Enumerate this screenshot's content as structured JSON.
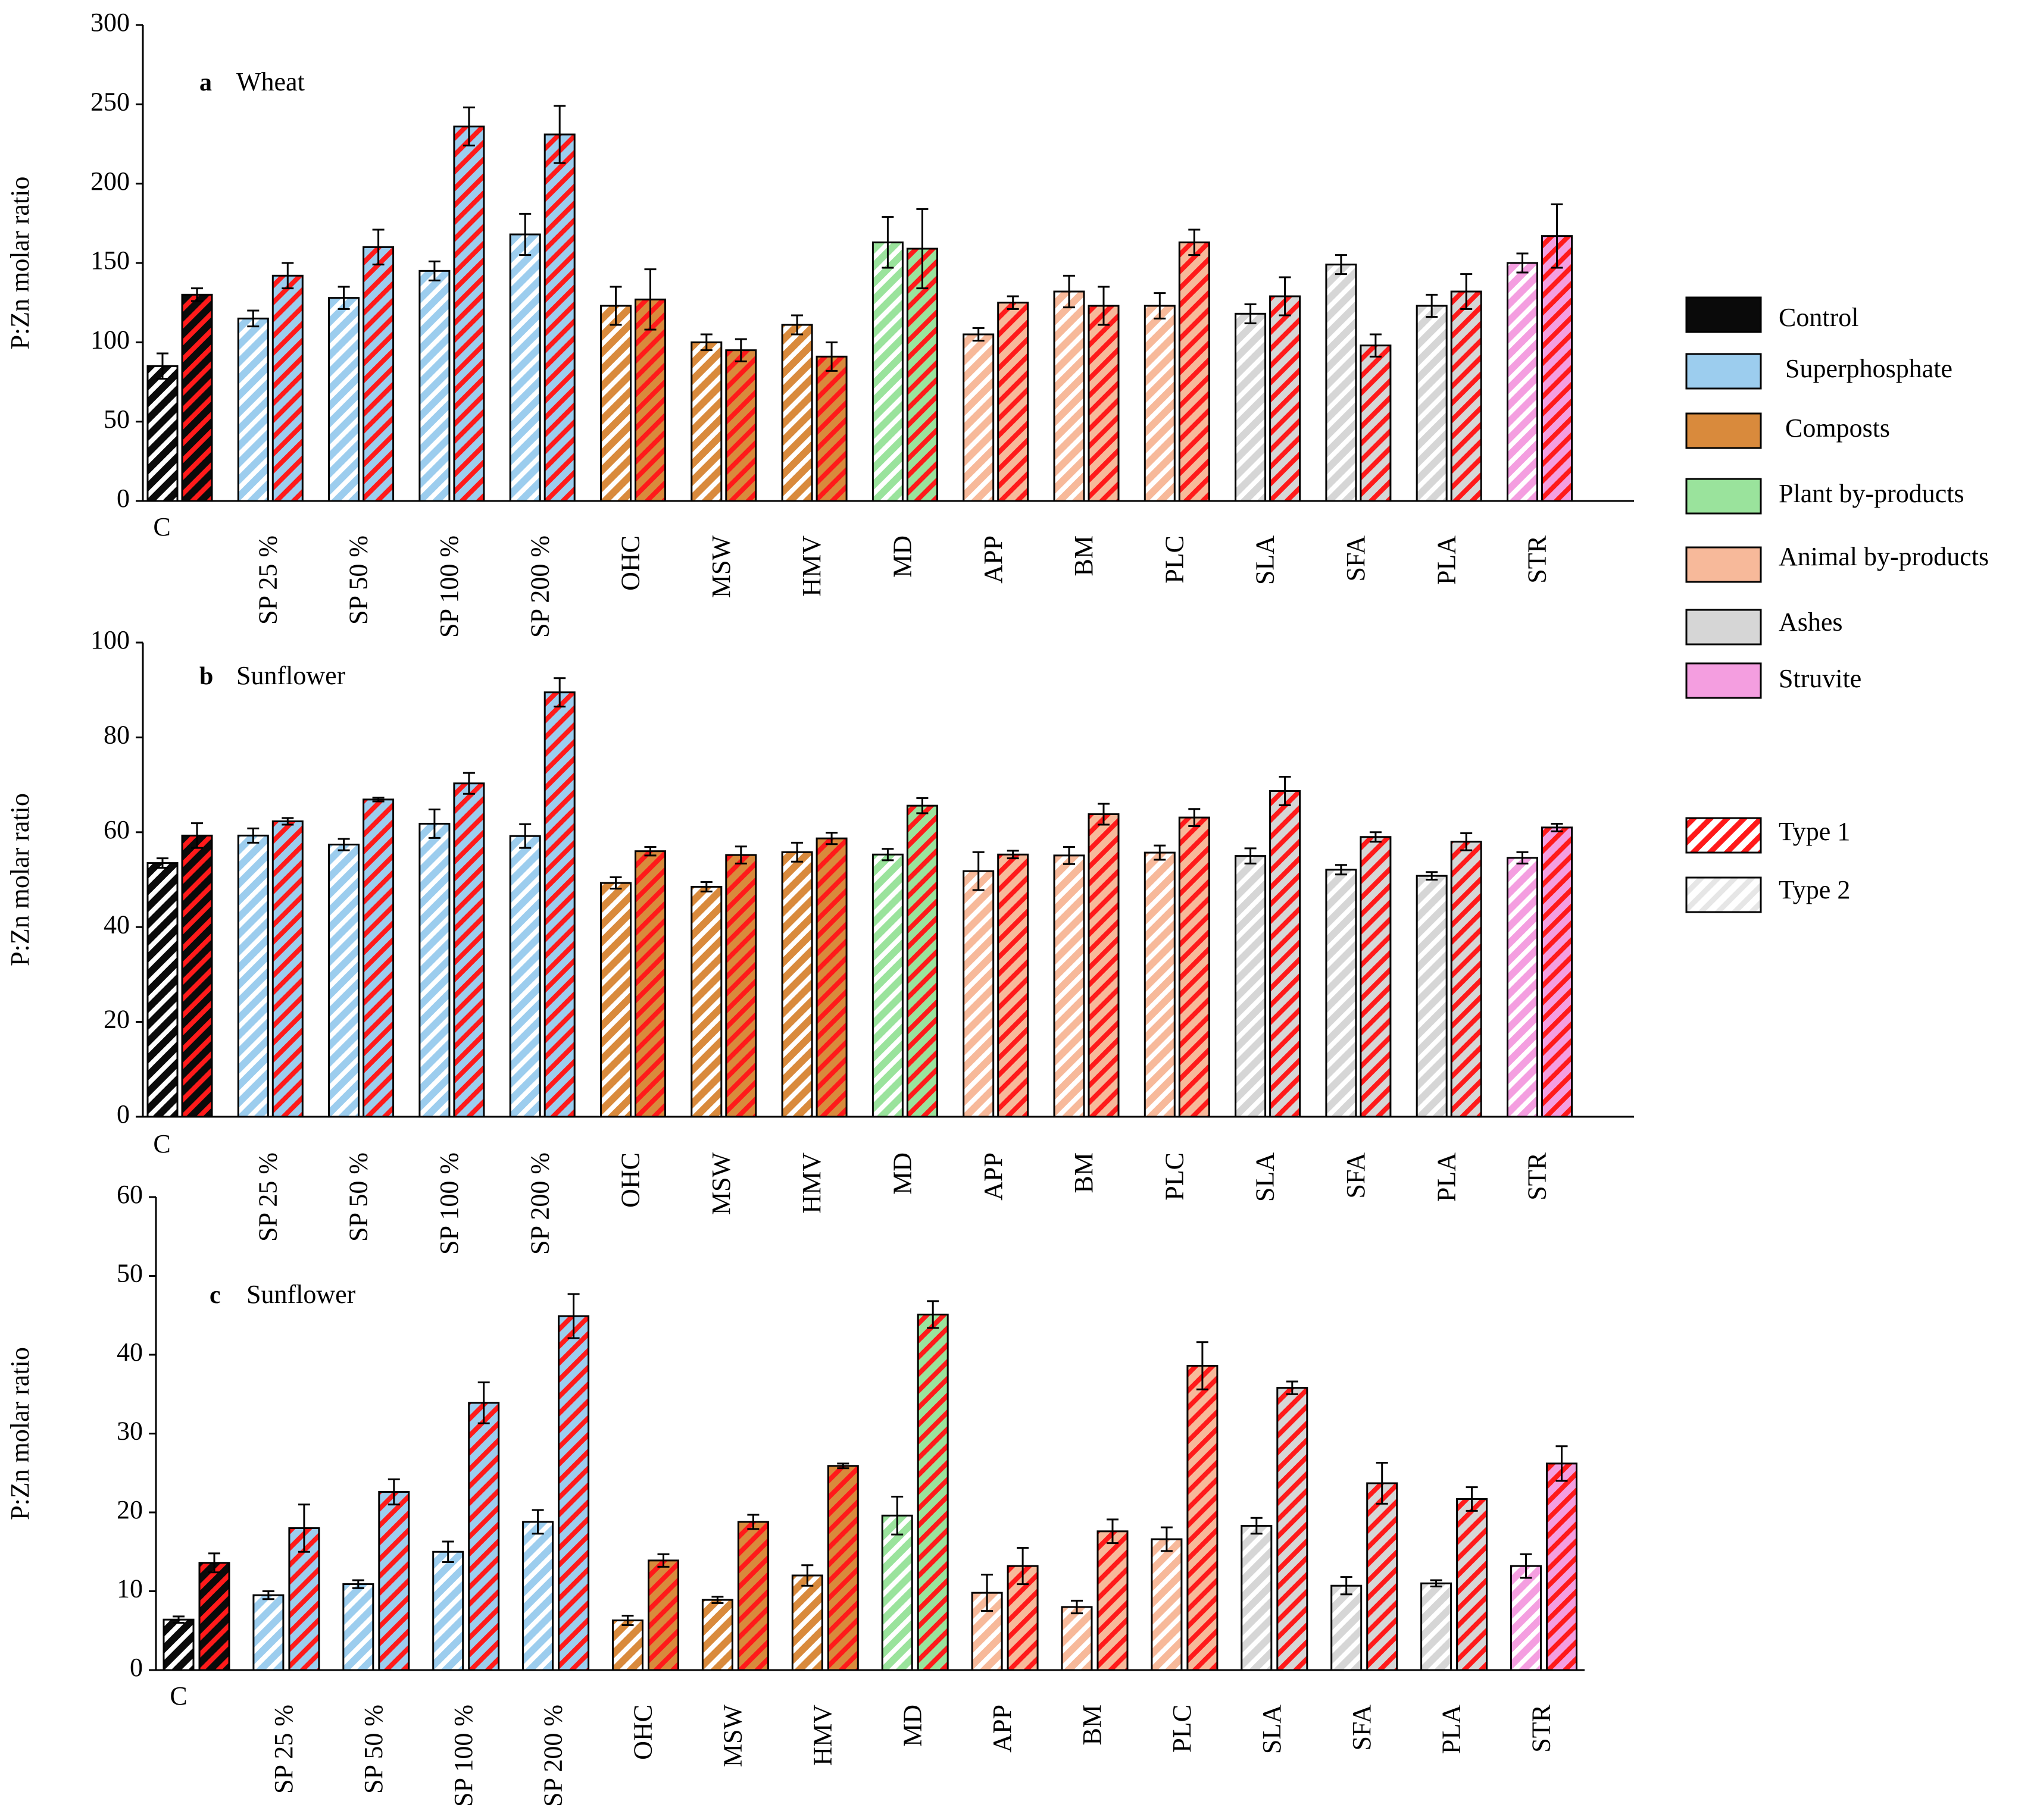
{
  "figure": {
    "treatments": [
      "C",
      "SP 25 %",
      "SP 50 %",
      "SP 100 %",
      "SP 200 %",
      "OHC",
      "MSW",
      "HMV",
      "MD",
      "APP",
      "BM",
      "PLC",
      "SLA",
      "SFA",
      "PLA",
      "STR"
    ],
    "treatment_groups": [
      "control",
      "superphosphate",
      "superphosphate",
      "superphosphate",
      "superphosphate",
      "composts",
      "composts",
      "composts",
      "plant",
      "animal",
      "animal",
      "animal",
      "ashes",
      "ashes",
      "ashes",
      "struvite"
    ]
  },
  "legend": {
    "groups": [
      {
        "key": "control",
        "label": "Control"
      },
      {
        "key": "superphosphate",
        "label": " Superphosphate"
      },
      {
        "key": "composts",
        "label": " Composts"
      },
      {
        "key": "plant",
        "label": "Plant by-products"
      },
      {
        "key": "animal",
        "label": "Animal by-products"
      },
      {
        "key": "ashes",
        "label": "Ashes"
      },
      {
        "key": "struvite",
        "label": "Struvite"
      }
    ],
    "types": [
      {
        "key": "type1",
        "label": "Type 1"
      },
      {
        "key": "type2",
        "label": "Type 2"
      }
    ]
  },
  "colors": {
    "control": "#0a0a0a",
    "superphosphate": "#9ccdee",
    "composts": "#d98a3c",
    "plant": "#9ae39c",
    "animal": "#f7b99a",
    "ashes": "#d6d6d6",
    "struvite": "#f49ee0",
    "type1_stripe": "#ff1a1a",
    "type2_stripe": "#ffffff",
    "border": "#000000"
  },
  "chart_data": [
    {
      "type": "bar",
      "panel_letter": "a",
      "title": "Wheat",
      "ylabel": "P:Zn molar ratio",
      "ylim": [
        0,
        300
      ],
      "yticks": [
        0,
        50,
        100,
        150,
        200,
        250,
        300
      ],
      "categories": [
        "C",
        "SP 25 %",
        "SP 50 %",
        "SP 100 %",
        "SP 200 %",
        "OHC",
        "MSW",
        "HMV",
        "MD",
        "APP",
        "BM",
        "PLC",
        "SLA",
        "SFA",
        "PLA",
        "STR"
      ],
      "series": [
        {
          "name": "Type 2",
          "values": [
            85,
            115,
            128,
            145,
            168,
            123,
            100,
            111,
            163,
            105,
            132,
            123,
            118,
            149,
            123,
            150
          ],
          "errors": [
            8,
            5,
            7,
            6,
            13,
            12,
            5,
            6,
            16,
            4,
            10,
            8,
            6,
            6,
            7,
            6
          ]
        },
        {
          "name": "Type 1",
          "values": [
            130,
            142,
            160,
            236,
            231,
            127,
            95,
            91,
            159,
            125,
            123,
            163,
            129,
            98,
            132,
            167
          ],
          "errors": [
            4,
            8,
            11,
            12,
            18,
            19,
            7,
            9,
            25,
            4,
            12,
            8,
            12,
            7,
            11,
            20
          ]
        }
      ]
    },
    {
      "type": "bar",
      "panel_letter": "b",
      "title": "Sunflower",
      "ylabel": "P:Zn molar ratio",
      "ylim": [
        0,
        100
      ],
      "yticks": [
        0,
        20,
        40,
        60,
        80,
        100
      ],
      "categories": [
        "C",
        "SP 25 %",
        "SP 50 %",
        "SP 100 %",
        "SP 200 %",
        "OHC",
        "MSW",
        "HMV",
        "MD",
        "APP",
        "BM",
        "PLC",
        "SLA",
        "SFA",
        "PLA",
        "STR"
      ],
      "series": [
        {
          "name": "Type 2",
          "values": [
            53.5,
            59.3,
            57.4,
            61.8,
            59.2,
            49.3,
            48.5,
            55.8,
            55.3,
            51.8,
            55.1,
            55.7,
            55.0,
            52.1,
            50.8,
            54.6
          ],
          "errors": [
            1.0,
            1.5,
            1.2,
            3.0,
            2.5,
            1.2,
            1.0,
            2.0,
            1.2,
            4.0,
            1.8,
            1.5,
            1.6,
            1.0,
            0.8,
            1.2
          ]
        },
        {
          "name": "Type 1",
          "values": [
            59.3,
            62.3,
            66.9,
            70.3,
            89.5,
            56.0,
            55.2,
            58.7,
            65.6,
            55.3,
            63.8,
            63.1,
            68.7,
            59.0,
            58.0,
            61.0
          ],
          "errors": [
            2.6,
            0.7,
            0.4,
            2.2,
            3.0,
            0.9,
            1.8,
            1.2,
            1.6,
            0.8,
            2.2,
            1.8,
            3.0,
            1.0,
            1.8,
            0.8
          ]
        }
      ]
    },
    {
      "type": "bar",
      "panel_letter": "c",
      "title": "Sunflower",
      "ylabel": "P:Zn molar ratio",
      "ylim": [
        0,
        60
      ],
      "yticks": [
        0,
        10,
        20,
        30,
        40,
        50,
        60
      ],
      "categories": [
        "C",
        "SP 25 %",
        "SP 50 %",
        "SP 100 %",
        "SP 200 %",
        "OHC",
        "MSW",
        "HMV",
        "MD",
        "APP",
        "BM",
        "PLC",
        "SLA",
        "SFA",
        "PLA",
        "STR"
      ],
      "series": [
        {
          "name": "Type 2",
          "values": [
            6.4,
            9.5,
            10.9,
            15.0,
            18.8,
            6.3,
            8.9,
            12.0,
            19.6,
            9.8,
            8.0,
            16.6,
            18.3,
            10.7,
            11.0,
            13.2
          ],
          "errors": [
            0.4,
            0.5,
            0.5,
            1.3,
            1.5,
            0.6,
            0.4,
            1.3,
            2.4,
            2.3,
            0.8,
            1.5,
            1.0,
            1.1,
            0.4,
            1.5
          ]
        },
        {
          "name": "Type 1",
          "values": [
            13.6,
            18.0,
            22.6,
            33.9,
            44.9,
            13.9,
            18.8,
            25.9,
            45.1,
            13.2,
            17.6,
            38.6,
            35.8,
            23.7,
            21.7,
            26.2
          ],
          "errors": [
            1.2,
            3.0,
            1.6,
            2.6,
            2.8,
            0.8,
            0.9,
            0.3,
            1.7,
            2.3,
            1.5,
            3.0,
            0.8,
            2.6,
            1.5,
            2.2
          ]
        }
      ]
    }
  ]
}
